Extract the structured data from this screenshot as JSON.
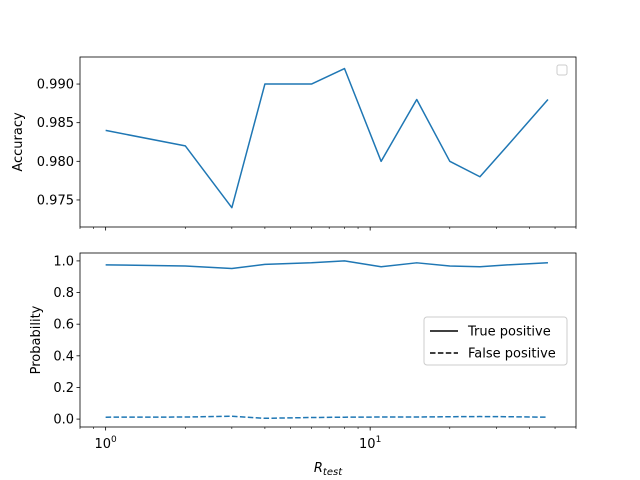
{
  "colors": {
    "series": "#1f77b4",
    "legend_line": "#000000",
    "frame": "#000000"
  },
  "chart_data": [
    {
      "type": "line",
      "xscale": "log",
      "xlim": [
        0.8,
        60
      ],
      "ylim": [
        0.9715,
        0.9935
      ],
      "ylabel": "Accuracy",
      "xlabel": "",
      "yticks": [
        0.975,
        0.98,
        0.985,
        0.99
      ],
      "ytick_labels": [
        "0.975",
        "0.980",
        "0.985",
        "0.990"
      ],
      "legend": {
        "placement": "top-right",
        "entries": []
      },
      "series": [
        {
          "x": [
            1,
            2,
            3,
            4,
            6,
            8,
            11,
            15,
            20,
            26,
            33,
            47
          ],
          "y": [
            0.984,
            0.982,
            0.974,
            0.99,
            0.99,
            0.992,
            0.98,
            0.988,
            0.98,
            0.978,
            0.982,
            0.988
          ],
          "style": "solid"
        }
      ]
    },
    {
      "type": "line",
      "xscale": "log",
      "xlim": [
        0.8,
        60
      ],
      "ylim": [
        -0.05,
        1.05
      ],
      "ylabel": "Probability",
      "xlabel": "R",
      "xlabel_sub": "test",
      "yticks": [
        0.0,
        0.2,
        0.4,
        0.6,
        0.8,
        1.0
      ],
      "ytick_labels": [
        "0.0",
        "0.2",
        "0.4",
        "0.6",
        "0.8",
        "1.0"
      ],
      "xticks": [
        1,
        10
      ],
      "xtick_labels": [
        {
          "base": "10",
          "exp": "0"
        },
        {
          "base": "10",
          "exp": "1"
        }
      ],
      "legend": {
        "placement": "center-right",
        "entries": [
          {
            "label": "True positive",
            "style": "solid"
          },
          {
            "label": "False positive",
            "style": "dashed"
          }
        ]
      },
      "series": [
        {
          "name": "True positive",
          "x": [
            1,
            2,
            3,
            4,
            6,
            8,
            11,
            15,
            20,
            26,
            33,
            47
          ],
          "y": [
            0.975,
            0.968,
            0.952,
            0.978,
            0.988,
            1.0,
            0.963,
            0.988,
            0.968,
            0.963,
            0.975,
            0.988
          ],
          "style": "solid"
        },
        {
          "name": "False positive",
          "x": [
            1,
            2,
            3,
            4,
            6,
            8,
            11,
            15,
            20,
            26,
            33,
            47
          ],
          "y": [
            0.012,
            0.013,
            0.018,
            0.005,
            0.01,
            0.012,
            0.013,
            0.013,
            0.015,
            0.016,
            0.015,
            0.012
          ],
          "style": "dashed"
        }
      ]
    }
  ]
}
